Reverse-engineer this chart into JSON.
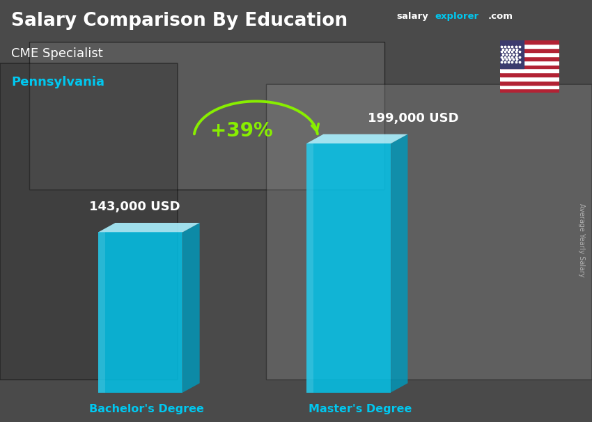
{
  "title": "Salary Comparison By Education",
  "subtitle1": "CME Specialist",
  "subtitle2": "Pennsylvania",
  "bar_labels": [
    "Bachelor's Degree",
    "Master's Degree"
  ],
  "bar_values": [
    143000,
    199000
  ],
  "bar_value_labels": [
    "143,000 USD",
    "199,000 USD"
  ],
  "bar_color_face": "#00c8f0",
  "bar_color_side": "#0099bb",
  "bar_color_top": "#aaf0ff",
  "pct_label": "+39%",
  "pct_color": "#88ee00",
  "bg_color": "#555555",
  "title_color": "#ffffff",
  "subtitle1_color": "#ffffff",
  "subtitle2_color": "#00c8f0",
  "bar_label_color": "#00c8f0",
  "value_label_color": "#ffffff",
  "side_label": "Average Yearly Salary",
  "side_label_color": "#cccccc",
  "brand_salary_color": "#ffffff",
  "brand_explorer_color": "#00c8f0",
  "brand_com_color": "#ffffff"
}
